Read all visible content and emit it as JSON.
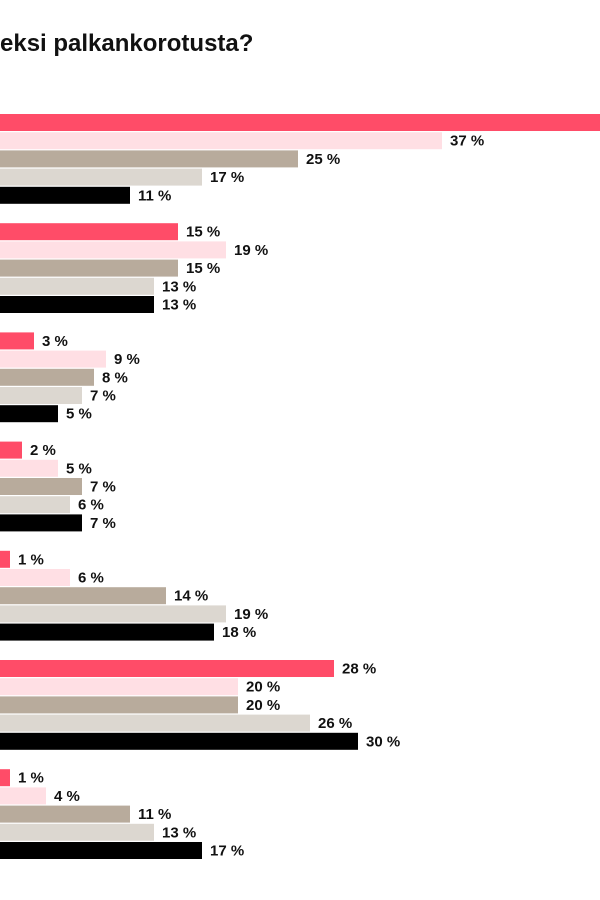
{
  "chart_data": {
    "type": "bar",
    "orientation": "horizontal",
    "title": "eksi palkankorotusta?",
    "value_suffix": " %",
    "colors": [
      "#ff4c68",
      "#ffdfe4",
      "#b8ab9c",
      "#dcd7d0",
      "#000000"
    ],
    "groups": [
      {
        "values": [
          null,
          37,
          25,
          17,
          11
        ]
      },
      {
        "values": [
          15,
          19,
          15,
          13,
          13
        ]
      },
      {
        "values": [
          3,
          9,
          8,
          7,
          5
        ]
      },
      {
        "values": [
          2,
          5,
          7,
          6,
          7
        ]
      },
      {
        "values": [
          1,
          6,
          14,
          19,
          18
        ]
      },
      {
        "values": [
          28,
          20,
          20,
          26,
          30
        ]
      },
      {
        "values": [
          1,
          4,
          11,
          13,
          17
        ]
      }
    ],
    "first_bar_value_hidden": true
  }
}
